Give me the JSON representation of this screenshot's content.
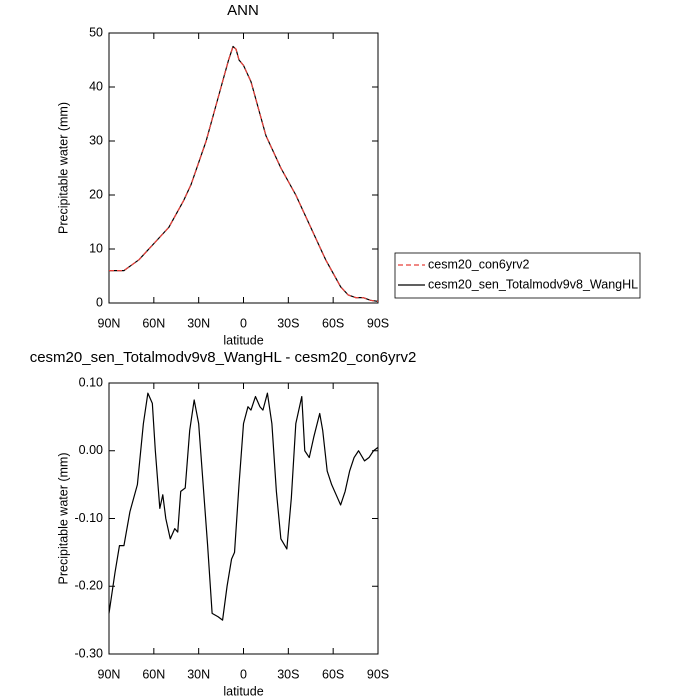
{
  "chart_data": [
    {
      "type": "line",
      "title": "ANN",
      "xlabel": "latitude",
      "ylabel": "Precipitable water (mm)",
      "xlim": [
        90,
        -90
      ],
      "xticks": [
        {
          "value": 90,
          "label": "90N"
        },
        {
          "value": 60,
          "label": "60N"
        },
        {
          "value": 30,
          "label": "30N"
        },
        0,
        {
          "value": -30,
          "label": "30S"
        },
        {
          "value": -60,
          "label": "60S"
        },
        {
          "value": -90,
          "label": "90S"
        }
      ],
      "ylim": [
        0,
        50
      ],
      "yticks": [
        0,
        10,
        20,
        30,
        40,
        50
      ],
      "legend": "right",
      "x": [
        90,
        85,
        80,
        75,
        70,
        65,
        60,
        55,
        50,
        45,
        40,
        35,
        30,
        25,
        20,
        15,
        10,
        7,
        5,
        3,
        0,
        -5,
        -10,
        -15,
        -20,
        -25,
        -30,
        -35,
        -40,
        -45,
        -50,
        -55,
        -60,
        -65,
        -70,
        -75,
        -80,
        -85,
        -90
      ],
      "series": [
        {
          "name": "cesm20_con6yrv2",
          "color": "#e8403a",
          "style": "dashed",
          "values": [
            6,
            6,
            6,
            7,
            8,
            9.5,
            11,
            12.5,
            14,
            16.5,
            19,
            22,
            26,
            30,
            35,
            40,
            45,
            47.5,
            47,
            45,
            44,
            41,
            36,
            31,
            28,
            25,
            22.5,
            20,
            17,
            14,
            11,
            8,
            5.5,
            3,
            1.5,
            1,
            1,
            0.5,
            0.3
          ]
        },
        {
          "name": "cesm20_sen_Totalmodv9v8_WangHL",
          "color": "#000000",
          "style": "solid",
          "values": [
            6,
            6,
            6,
            7,
            8,
            9.5,
            11,
            12.5,
            14,
            16.5,
            19,
            22,
            26,
            30,
            35,
            40,
            45,
            47.5,
            47,
            45,
            44,
            41,
            36,
            31,
            28,
            25,
            22.5,
            20,
            17,
            14,
            11,
            8,
            5.5,
            3,
            1.5,
            1,
            1,
            0.5,
            0.3
          ]
        }
      ]
    },
    {
      "type": "line",
      "title": "cesm20_sen_Totalmodv9v8_WangHL - cesm20_con6yrv2",
      "xlabel": "latitude",
      "ylabel": "Precipitable water (mm)",
      "xlim": [
        90,
        -90
      ],
      "xticks": [
        {
          "value": 90,
          "label": "90N"
        },
        {
          "value": 60,
          "label": "60N"
        },
        {
          "value": 30,
          "label": "30N"
        },
        0,
        {
          "value": -30,
          "label": "30S"
        },
        {
          "value": -60,
          "label": "60S"
        },
        {
          "value": -90,
          "label": "90S"
        }
      ],
      "ylim": [
        -0.3,
        0.1
      ],
      "yticks": [
        {
          "value": -0.3,
          "label": "-0.30"
        },
        {
          "value": -0.2,
          "label": "-0.20"
        },
        {
          "value": -0.1,
          "label": "-0.10"
        },
        {
          "value": 0,
          "label": "0.00"
        },
        {
          "value": 0.1,
          "label": "0.10"
        }
      ],
      "x": [
        90,
        86,
        83,
        80,
        76,
        71,
        67,
        64,
        61,
        59,
        56,
        54,
        52,
        49,
        46,
        44,
        42,
        39,
        36,
        33,
        30,
        27,
        24,
        21,
        17,
        14,
        11,
        8,
        6,
        3,
        0,
        -3,
        -5,
        -8,
        -11,
        -13,
        -16,
        -19,
        -22,
        -25,
        -29,
        -32,
        -35,
        -39,
        -41,
        -44,
        -47,
        -51,
        -53,
        -56,
        -59,
        -63,
        -65,
        -68,
        -71,
        -74,
        -77,
        -81,
        -84,
        -87,
        -90
      ],
      "series": [
        {
          "color": "#000000",
          "style": "solid",
          "values": [
            -0.24,
            -0.18,
            -0.14,
            -0.14,
            -0.09,
            -0.05,
            0.04,
            0.085,
            0.07,
            0.0,
            -0.085,
            -0.065,
            -0.1,
            -0.13,
            -0.115,
            -0.12,
            -0.06,
            -0.055,
            0.03,
            0.075,
            0.04,
            -0.05,
            -0.14,
            -0.24,
            -0.245,
            -0.25,
            -0.2,
            -0.16,
            -0.15,
            -0.05,
            0.04,
            0.065,
            0.06,
            0.08,
            0.065,
            0.06,
            0.085,
            0.04,
            -0.06,
            -0.13,
            -0.145,
            -0.07,
            0.04,
            0.08,
            0.0,
            -0.01,
            0.02,
            0.055,
            0.03,
            -0.03,
            -0.05,
            -0.07,
            -0.08,
            -0.06,
            -0.03,
            -0.01,
            0.0,
            -0.015,
            -0.01,
            0.0,
            0.005
          ]
        }
      ]
    }
  ]
}
